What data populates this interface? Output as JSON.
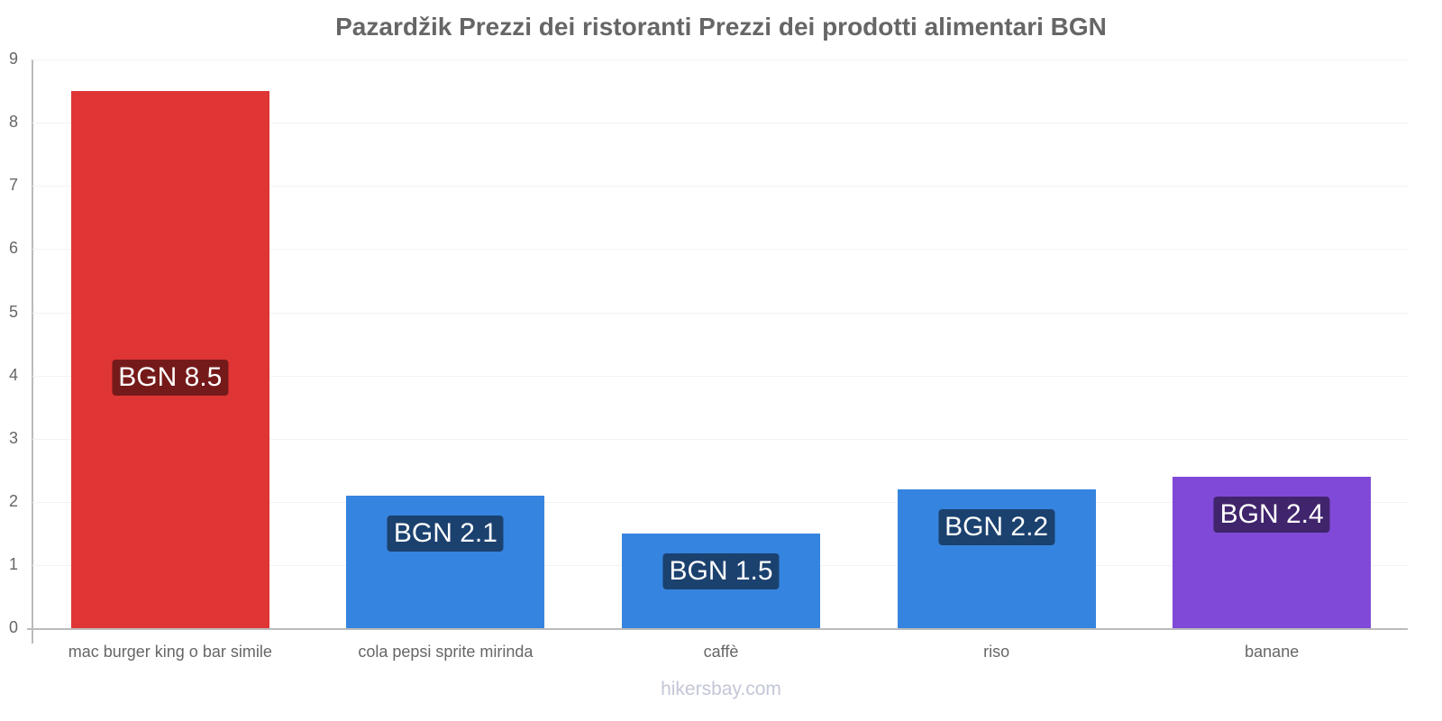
{
  "title": "Pazardžik Prezzi dei ristoranti Prezzi dei prodotti alimentari BGN",
  "footer": "hikersbay.com",
  "y_ticks": [
    "0",
    "1",
    "2",
    "3",
    "4",
    "5",
    "6",
    "7",
    "8",
    "9"
  ],
  "bars": [
    {
      "category": "mac burger king o bar simile",
      "value": 8.5,
      "label": "BGN 8.5",
      "color": "#e03535",
      "label_bg": "#751a1a"
    },
    {
      "category": "cola pepsi sprite mirinda",
      "value": 2.1,
      "label": "BGN 2.1",
      "color": "#3584df",
      "label_bg": "#1b416f"
    },
    {
      "category": "caffè",
      "value": 1.5,
      "label": "BGN 1.5",
      "color": "#3584df",
      "label_bg": "#1b416f"
    },
    {
      "category": "riso",
      "value": 2.2,
      "label": "BGN 2.2",
      "color": "#3584df",
      "label_bg": "#1b416f"
    },
    {
      "category": "banane",
      "value": 2.4,
      "label": "BGN 2.4",
      "color": "#8049d8",
      "label_bg": "#40246c"
    }
  ],
  "chart_data": {
    "type": "bar",
    "title": "Pazardžik Prezzi dei ristoranti Prezzi dei prodotti alimentari BGN",
    "categories": [
      "mac burger king o bar simile",
      "cola pepsi sprite mirinda",
      "caffè",
      "riso",
      "banane"
    ],
    "values": [
      8.5,
      2.1,
      1.5,
      2.2,
      2.4
    ],
    "data_labels": [
      "BGN 8.5",
      "BGN 2.1",
      "BGN 1.5",
      "BGN 2.2",
      "BGN 2.4"
    ],
    "xlabel": "",
    "ylabel": "",
    "ylim": [
      0,
      9
    ],
    "yticks": [
      0,
      1,
      2,
      3,
      4,
      5,
      6,
      7,
      8,
      9
    ],
    "grid": true,
    "legend": "none",
    "colors": [
      "#e03535",
      "#3584df",
      "#3584df",
      "#3584df",
      "#8049d8"
    ]
  }
}
